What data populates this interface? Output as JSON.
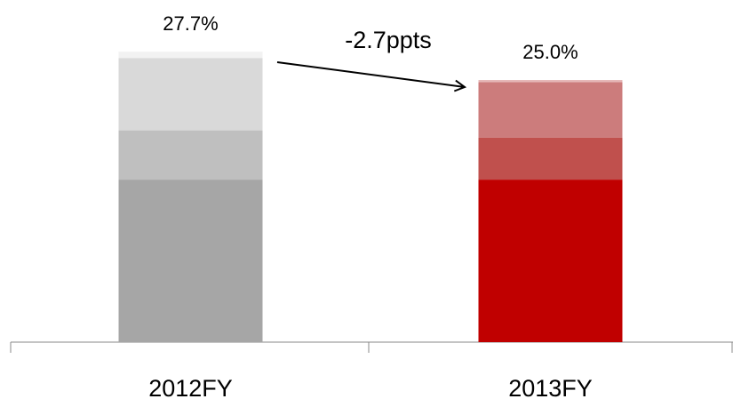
{
  "chart_data": {
    "type": "stacked_bar",
    "categories": [
      "2012FY",
      "2013FY"
    ],
    "series": [
      {
        "colors": [
          "#a6a6a6",
          "#c00000"
        ],
        "values": [
          15.5,
          15.5
        ]
      },
      {
        "colors": [
          "#bfbfbf",
          "#c0504d"
        ],
        "values": [
          4.7,
          4.0
        ]
      },
      {
        "colors": [
          "#d9d9d9",
          "#cc7c7c"
        ],
        "values": [
          6.9,
          5.3
        ]
      },
      {
        "colors": [
          "#f2f2f2",
          "#e6b8b8"
        ],
        "values": [
          0.6,
          0.2
        ]
      }
    ],
    "total_labels": [
      "27.7%",
      "25.0%"
    ],
    "annotation": "-2.7ppts",
    "ylim": [
      0,
      30
    ]
  }
}
